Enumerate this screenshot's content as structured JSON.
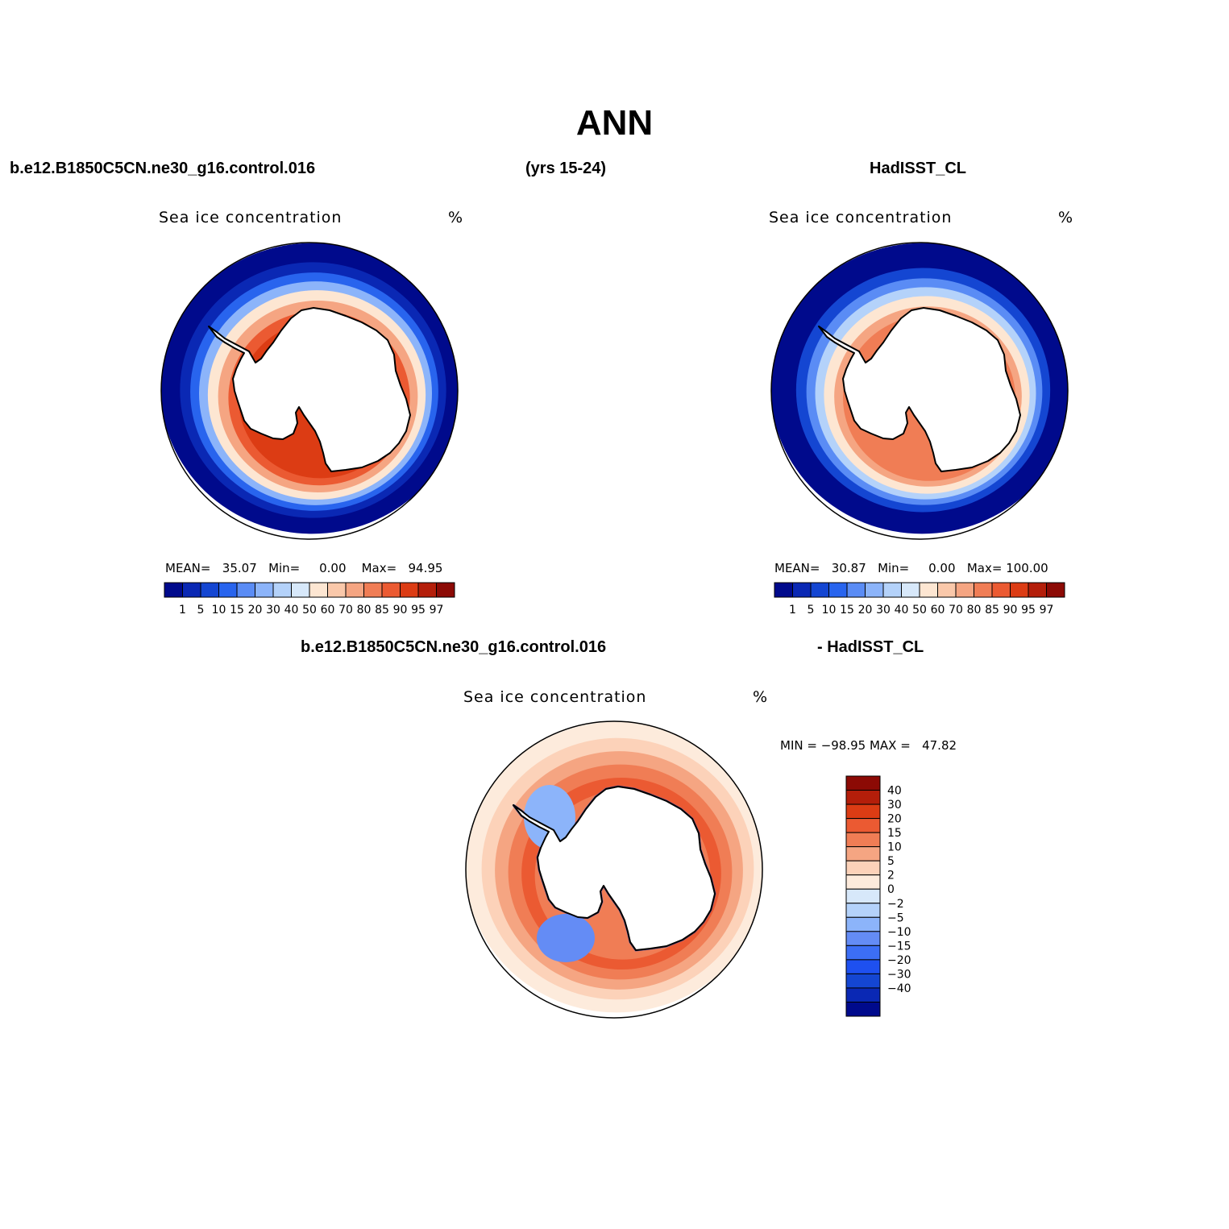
{
  "header": {
    "title": "ANN",
    "case_label": "b.e12.B1850C5CN.ne30_g16.control.016",
    "years_label": "(yrs 15-24)",
    "obs_label": "HadISST_CL",
    "diff_case_label": "b.e12.B1850C5CN.ne30_g16.control.016",
    "diff_obs_label": "- HadISST_CL"
  },
  "panels": [
    {
      "title": "Sea ice concentration",
      "units": "%",
      "mean_label": "MEAN=",
      "mean": "35.07",
      "min_label": "Min=",
      "min": "0.00",
      "max_label": "Max=",
      "max": "94.95"
    },
    {
      "title": "Sea ice concentration",
      "units": "%",
      "mean_label": "MEAN=",
      "mean": "30.87",
      "min_label": "Min=",
      "min": "0.00",
      "max_label": "Max=",
      "max": "100.00"
    },
    {
      "title": "Sea ice concentration",
      "units": "%",
      "minmax_text": "MIN = −98.95 MAX =   47.82"
    }
  ],
  "colorbar_abs": {
    "colors": [
      "#000a8c",
      "#0a28b4",
      "#1446d2",
      "#2864ee",
      "#5a8cf5",
      "#8cb4fa",
      "#b4d2fa",
      "#d7e8fa",
      "#fde6d2",
      "#fac8aa",
      "#f5a582",
      "#f07d55",
      "#eb5a32",
      "#dc3c14",
      "#b41e0a",
      "#8c0a05"
    ],
    "labels": [
      "1",
      "5",
      "10",
      "15",
      "20",
      "30",
      "40",
      "50",
      "60",
      "70",
      "80",
      "85",
      "90",
      "95",
      "97"
    ]
  },
  "colorbar_diff": {
    "colors": [
      "#000a8c",
      "#0a28b4",
      "#1446d2",
      "#1e50f0",
      "#3c6ef5",
      "#648cf5",
      "#8cb4fa",
      "#b4d2fa",
      "#d7e8fa",
      "#fdebdc",
      "#fcd2b9",
      "#f5a582",
      "#f07d55",
      "#eb5a32",
      "#dc3c14",
      "#b41e0a",
      "#8c0a05"
    ],
    "labels": [
      "40",
      "30",
      "20",
      "15",
      "10",
      "5",
      "2",
      "0",
      "−2",
      "−5",
      "−10",
      "−15",
      "−20",
      "−30",
      "−40"
    ]
  },
  "map_layers": {
    "abs_model": [
      {
        "r": 1.0,
        "color": "#000a8c"
      },
      {
        "r": 0.88,
        "color": "#0a28b4"
      },
      {
        "r": 0.82,
        "color": "#2864ee"
      },
      {
        "r": 0.77,
        "color": "#8cb4fa"
      },
      {
        "r": 0.72,
        "color": "#fde6d2"
      },
      {
        "r": 0.66,
        "color": "#f5a582"
      },
      {
        "r": 0.6,
        "color": "#eb5a32"
      },
      {
        "r": 0.54,
        "color": "#dc3c14"
      }
    ],
    "abs_obs": [
      {
        "r": 1.0,
        "color": "#000a8c"
      },
      {
        "r": 0.84,
        "color": "#1446d2"
      },
      {
        "r": 0.78,
        "color": "#5a8cf5"
      },
      {
        "r": 0.73,
        "color": "#b4d2fa"
      },
      {
        "r": 0.68,
        "color": "#fde6d2"
      },
      {
        "r": 0.62,
        "color": "#f5a582"
      },
      {
        "r": 0.57,
        "color": "#f07d55"
      }
    ],
    "diff": [
      {
        "r": 1.0,
        "color": "#fdebdc"
      },
      {
        "r": 0.9,
        "color": "#fcd2b9"
      },
      {
        "r": 0.82,
        "color": "#f5a582"
      },
      {
        "r": 0.74,
        "color": "#f07d55"
      },
      {
        "r": 0.66,
        "color": "#eb5a32"
      },
      {
        "r": 0.58,
        "color": "#f07d55"
      }
    ]
  }
}
